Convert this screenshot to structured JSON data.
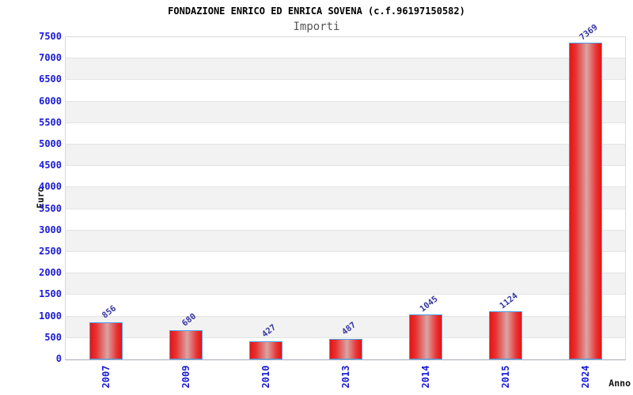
{
  "header": {
    "title": "FONDAZIONE ENRICO ED ENRICA SOVENA (c.f.96197150582)",
    "subtitle": "Importi"
  },
  "chart_data": {
    "type": "bar",
    "title": "FONDAZIONE ENRICO ED ENRICA SOVENA (c.f.96197150582)",
    "subtitle": "Importi",
    "xlabel": "Anno",
    "ylabel": "Euro",
    "categories": [
      "2007",
      "2009",
      "2010",
      "2013",
      "2014",
      "2015",
      "2024"
    ],
    "values": [
      856,
      680,
      427,
      487,
      1045,
      1124,
      7369
    ],
    "ylim": [
      0,
      7500
    ],
    "ytick_step": 500,
    "grid": true,
    "alternating_bands": true,
    "legend": "none",
    "colors": {
      "bar_fill_edge": "#e51515",
      "bar_fill_center": "#dba3a3",
      "bar_border": "#4aa0e8",
      "tick_label": "#1a1ad6",
      "value_label": "#3535a0",
      "band_gray": "#f2f2f2",
      "band_white": "#ffffff",
      "gridline": "#e3e3e3",
      "axis_text": "#111111",
      "title_color": "#000000",
      "subtitle_color": "#555555"
    }
  }
}
